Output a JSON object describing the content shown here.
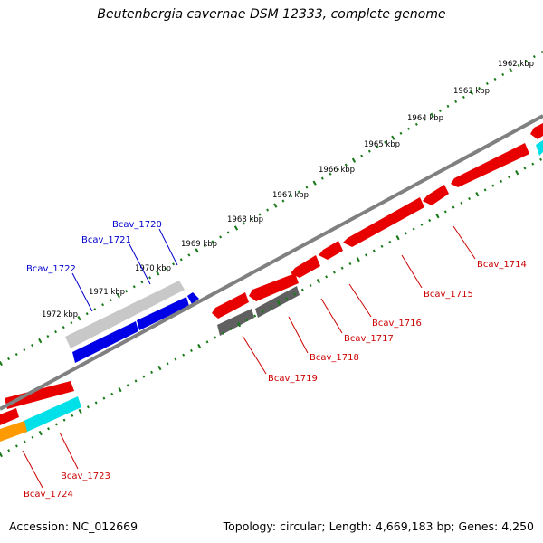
{
  "title": "Beutenbergia cavernae DSM 12333, complete genome",
  "footer": {
    "accession": "Accession: NC_012669",
    "summary": "Topology: circular; Length: 4,669,183 bp; Genes: 4,250"
  },
  "kbp_labels": [
    "1962 kbp",
    "1963 kbp",
    "1964 kbp",
    "1965 kbp",
    "1966 kbp",
    "1967 kbp",
    "1968 kbp",
    "1969 kbp",
    "1970 kbp",
    "1971 kbp",
    "1972 kbp"
  ],
  "gene_labels": {
    "forward": [
      "Bcav_1720",
      "Bcav_1721",
      "Bcav_1722"
    ],
    "reverse": [
      "Bcav_1714",
      "Bcav_1715",
      "Bcav_1716",
      "Bcav_1717",
      "Bcav_1718",
      "Bcav_1719",
      "Bcav_1723",
      "Bcav_1724"
    ]
  },
  "colors": {
    "forward_label": "#0000cc",
    "reverse_label": "#cc0000",
    "ticks": "#1a7a1a",
    "backbone": "#808080",
    "red_gene": "#e80000",
    "blue_gene": "#0000e6",
    "gray_gene": "#606060",
    "light_gray_gene": "#c8c8c8",
    "cyan_gene": "#00e0e8",
    "orange_gene": "#ff9a00"
  }
}
